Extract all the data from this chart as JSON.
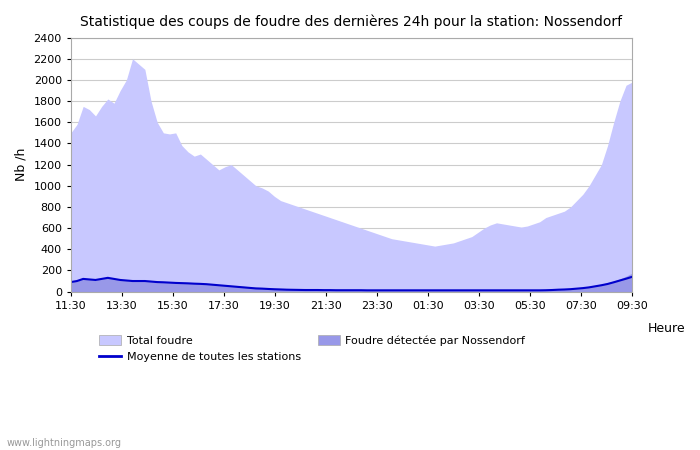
{
  "title": "Statistique des coups de foudre des dernières 24h pour la station: Nossendorf",
  "ylabel": "Nb /h",
  "xlabel": "Heure",
  "watermark": "www.lightningmaps.org",
  "xtick_labels": [
    "11:30",
    "13:30",
    "15:30",
    "17:30",
    "19:30",
    "21:30",
    "23:30",
    "01:30",
    "03:30",
    "05:30",
    "07:30",
    "09:30"
  ],
  "ylim": [
    0,
    2400
  ],
  "yticks": [
    0,
    200,
    400,
    600,
    800,
    1000,
    1200,
    1400,
    1600,
    1800,
    2000,
    2200,
    2400
  ],
  "total_foudre_color": "#c8c8ff",
  "nossendorf_color": "#9898e8",
  "moyenne_color": "#0000cc",
  "background_color": "#ffffff",
  "plot_bg_color": "#ffffff",
  "total_foudre": [
    1500,
    1580,
    1750,
    1720,
    1660,
    1750,
    1820,
    1780,
    1900,
    2000,
    2200,
    2150,
    2100,
    1800,
    1600,
    1500,
    1490,
    1500,
    1380,
    1320,
    1280,
    1300,
    1250,
    1200,
    1150,
    1180,
    1200,
    1150,
    1100,
    1050,
    1000,
    980,
    950,
    900,
    860,
    840,
    820,
    800,
    780,
    760,
    740,
    720,
    700,
    680,
    660,
    640,
    620,
    600,
    580,
    560,
    540,
    520,
    500,
    490,
    480,
    470,
    460,
    450,
    440,
    430,
    440,
    450,
    460,
    480,
    500,
    520,
    560,
    600,
    630,
    650,
    640,
    630,
    620,
    610,
    620,
    640,
    660,
    700,
    720,
    740,
    760,
    800,
    860,
    920,
    1000,
    1100,
    1200,
    1380,
    1600,
    1800,
    1950,
    1980
  ],
  "nossendorf": [
    90,
    100,
    120,
    115,
    110,
    120,
    130,
    120,
    110,
    105,
    100,
    100,
    100,
    100,
    100,
    95,
    90,
    90,
    85,
    80,
    80,
    75,
    75,
    70,
    65,
    60,
    55,
    50,
    50,
    45,
    42,
    40,
    38,
    35,
    32,
    30,
    28,
    26,
    24,
    22,
    20,
    20,
    20,
    18,
    18,
    17,
    17,
    16,
    16,
    15,
    15,
    15,
    15,
    15,
    15,
    15,
    15,
    15,
    15,
    15,
    15,
    15,
    15,
    15,
    15,
    15,
    15,
    15,
    15,
    15,
    15,
    15,
    15,
    15,
    15,
    15,
    15,
    15,
    18,
    22,
    26,
    30,
    35,
    42,
    50,
    60,
    70,
    85,
    100,
    120,
    145,
    175,
    210,
    230
  ],
  "moyenne": [
    90,
    100,
    120,
    115,
    110,
    120,
    130,
    120,
    110,
    105,
    100,
    100,
    100,
    95,
    90,
    88,
    85,
    82,
    80,
    78,
    75,
    73,
    70,
    65,
    60,
    55,
    50,
    45,
    40,
    35,
    30,
    28,
    25,
    22,
    20,
    18,
    17,
    16,
    15,
    15,
    15,
    14,
    14,
    13,
    13,
    13,
    13,
    13,
    12,
    12,
    12,
    12,
    12,
    12,
    12,
    12,
    12,
    12,
    12,
    12,
    12,
    12,
    12,
    12,
    12,
    12,
    12,
    12,
    12,
    12,
    12,
    12,
    12,
    12,
    12,
    12,
    12,
    13,
    15,
    18,
    20,
    23,
    28,
    33,
    40,
    50,
    60,
    72,
    88,
    105,
    122,
    140,
    160,
    175
  ]
}
